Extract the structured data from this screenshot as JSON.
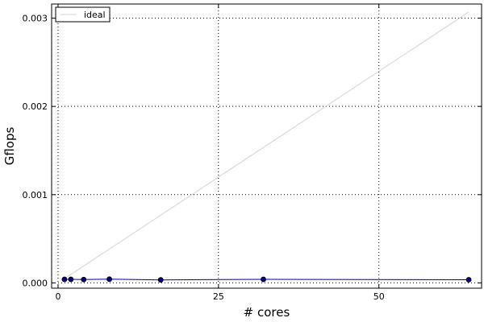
{
  "chart_data": {
    "type": "line",
    "title": "",
    "xlabel": "# cores",
    "ylabel": "Gflops",
    "xlim": [
      -1,
      66
    ],
    "ylim": [
      -6e-05,
      0.00316
    ],
    "xticks": [
      0,
      25,
      50
    ],
    "xtick_labels": [
      "0",
      "25",
      "50"
    ],
    "yticks": [
      0.0,
      0.001,
      0.002,
      0.003
    ],
    "ytick_labels": [
      "0.000",
      "0.001",
      "0.002",
      "0.003"
    ],
    "grid": true,
    "legend": {
      "position": "top-left"
    },
    "series": [
      {
        "name": "ideal",
        "color": "#d3d3d3",
        "marker": false,
        "x": [
          1,
          64
        ],
        "y": [
          4.8e-05,
          0.00307
        ]
      },
      {
        "name": "",
        "color": "#0000aa",
        "marker": true,
        "x": [
          1,
          2,
          4,
          8,
          16,
          32,
          64
        ],
        "y": [
          4e-05,
          4e-05,
          3.8e-05,
          4.2e-05,
          3.4e-05,
          4e-05,
          3.6e-05
        ]
      }
    ]
  }
}
